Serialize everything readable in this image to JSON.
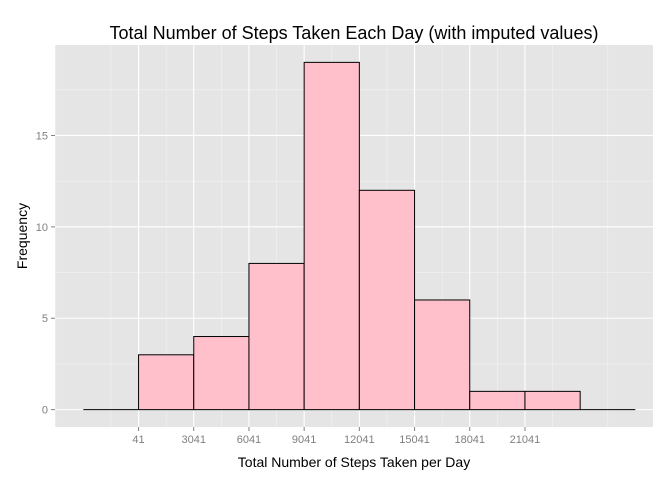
{
  "chart_data": {
    "type": "bar",
    "title": "Total Number of Steps Taken Each Day (with imputed values)",
    "xlabel": "Total Number of Steps Taken per Day",
    "ylabel": "Frequency",
    "x_ticks": [
      41,
      3041,
      6041,
      9041,
      12041,
      15041,
      18041,
      21041
    ],
    "x_tick_labels": [
      "41",
      "3041",
      "6041",
      "9041",
      "12041",
      "15041",
      "18041",
      "21041"
    ],
    "y_ticks": [
      0,
      5,
      10,
      15
    ],
    "y_tick_labels": [
      "0",
      "5",
      "10",
      "15"
    ],
    "xlim": [
      -4500,
      28000
    ],
    "ylim": [
      -0.95,
      19.95
    ],
    "bins": [
      {
        "start": -2959,
        "end": 41,
        "count": 0
      },
      {
        "start": 41,
        "end": 3041,
        "count": 3
      },
      {
        "start": 3041,
        "end": 6041,
        "count": 4
      },
      {
        "start": 6041,
        "end": 9041,
        "count": 8
      },
      {
        "start": 9041,
        "end": 12041,
        "count": 19
      },
      {
        "start": 12041,
        "end": 15041,
        "count": 12
      },
      {
        "start": 15041,
        "end": 18041,
        "count": 6
      },
      {
        "start": 18041,
        "end": 21041,
        "count": 1
      },
      {
        "start": 21041,
        "end": 24041,
        "count": 1
      },
      {
        "start": 24041,
        "end": 27041,
        "count": 0
      }
    ],
    "grid": true,
    "colors": {
      "bar_fill": "#ffc0cb",
      "bar_stroke": "#000000",
      "panel_background": "#e5e5e5",
      "grid_major": "#ffffff",
      "grid_minor": "#f2f2f2",
      "tick_label": "#7f7f7f"
    }
  }
}
